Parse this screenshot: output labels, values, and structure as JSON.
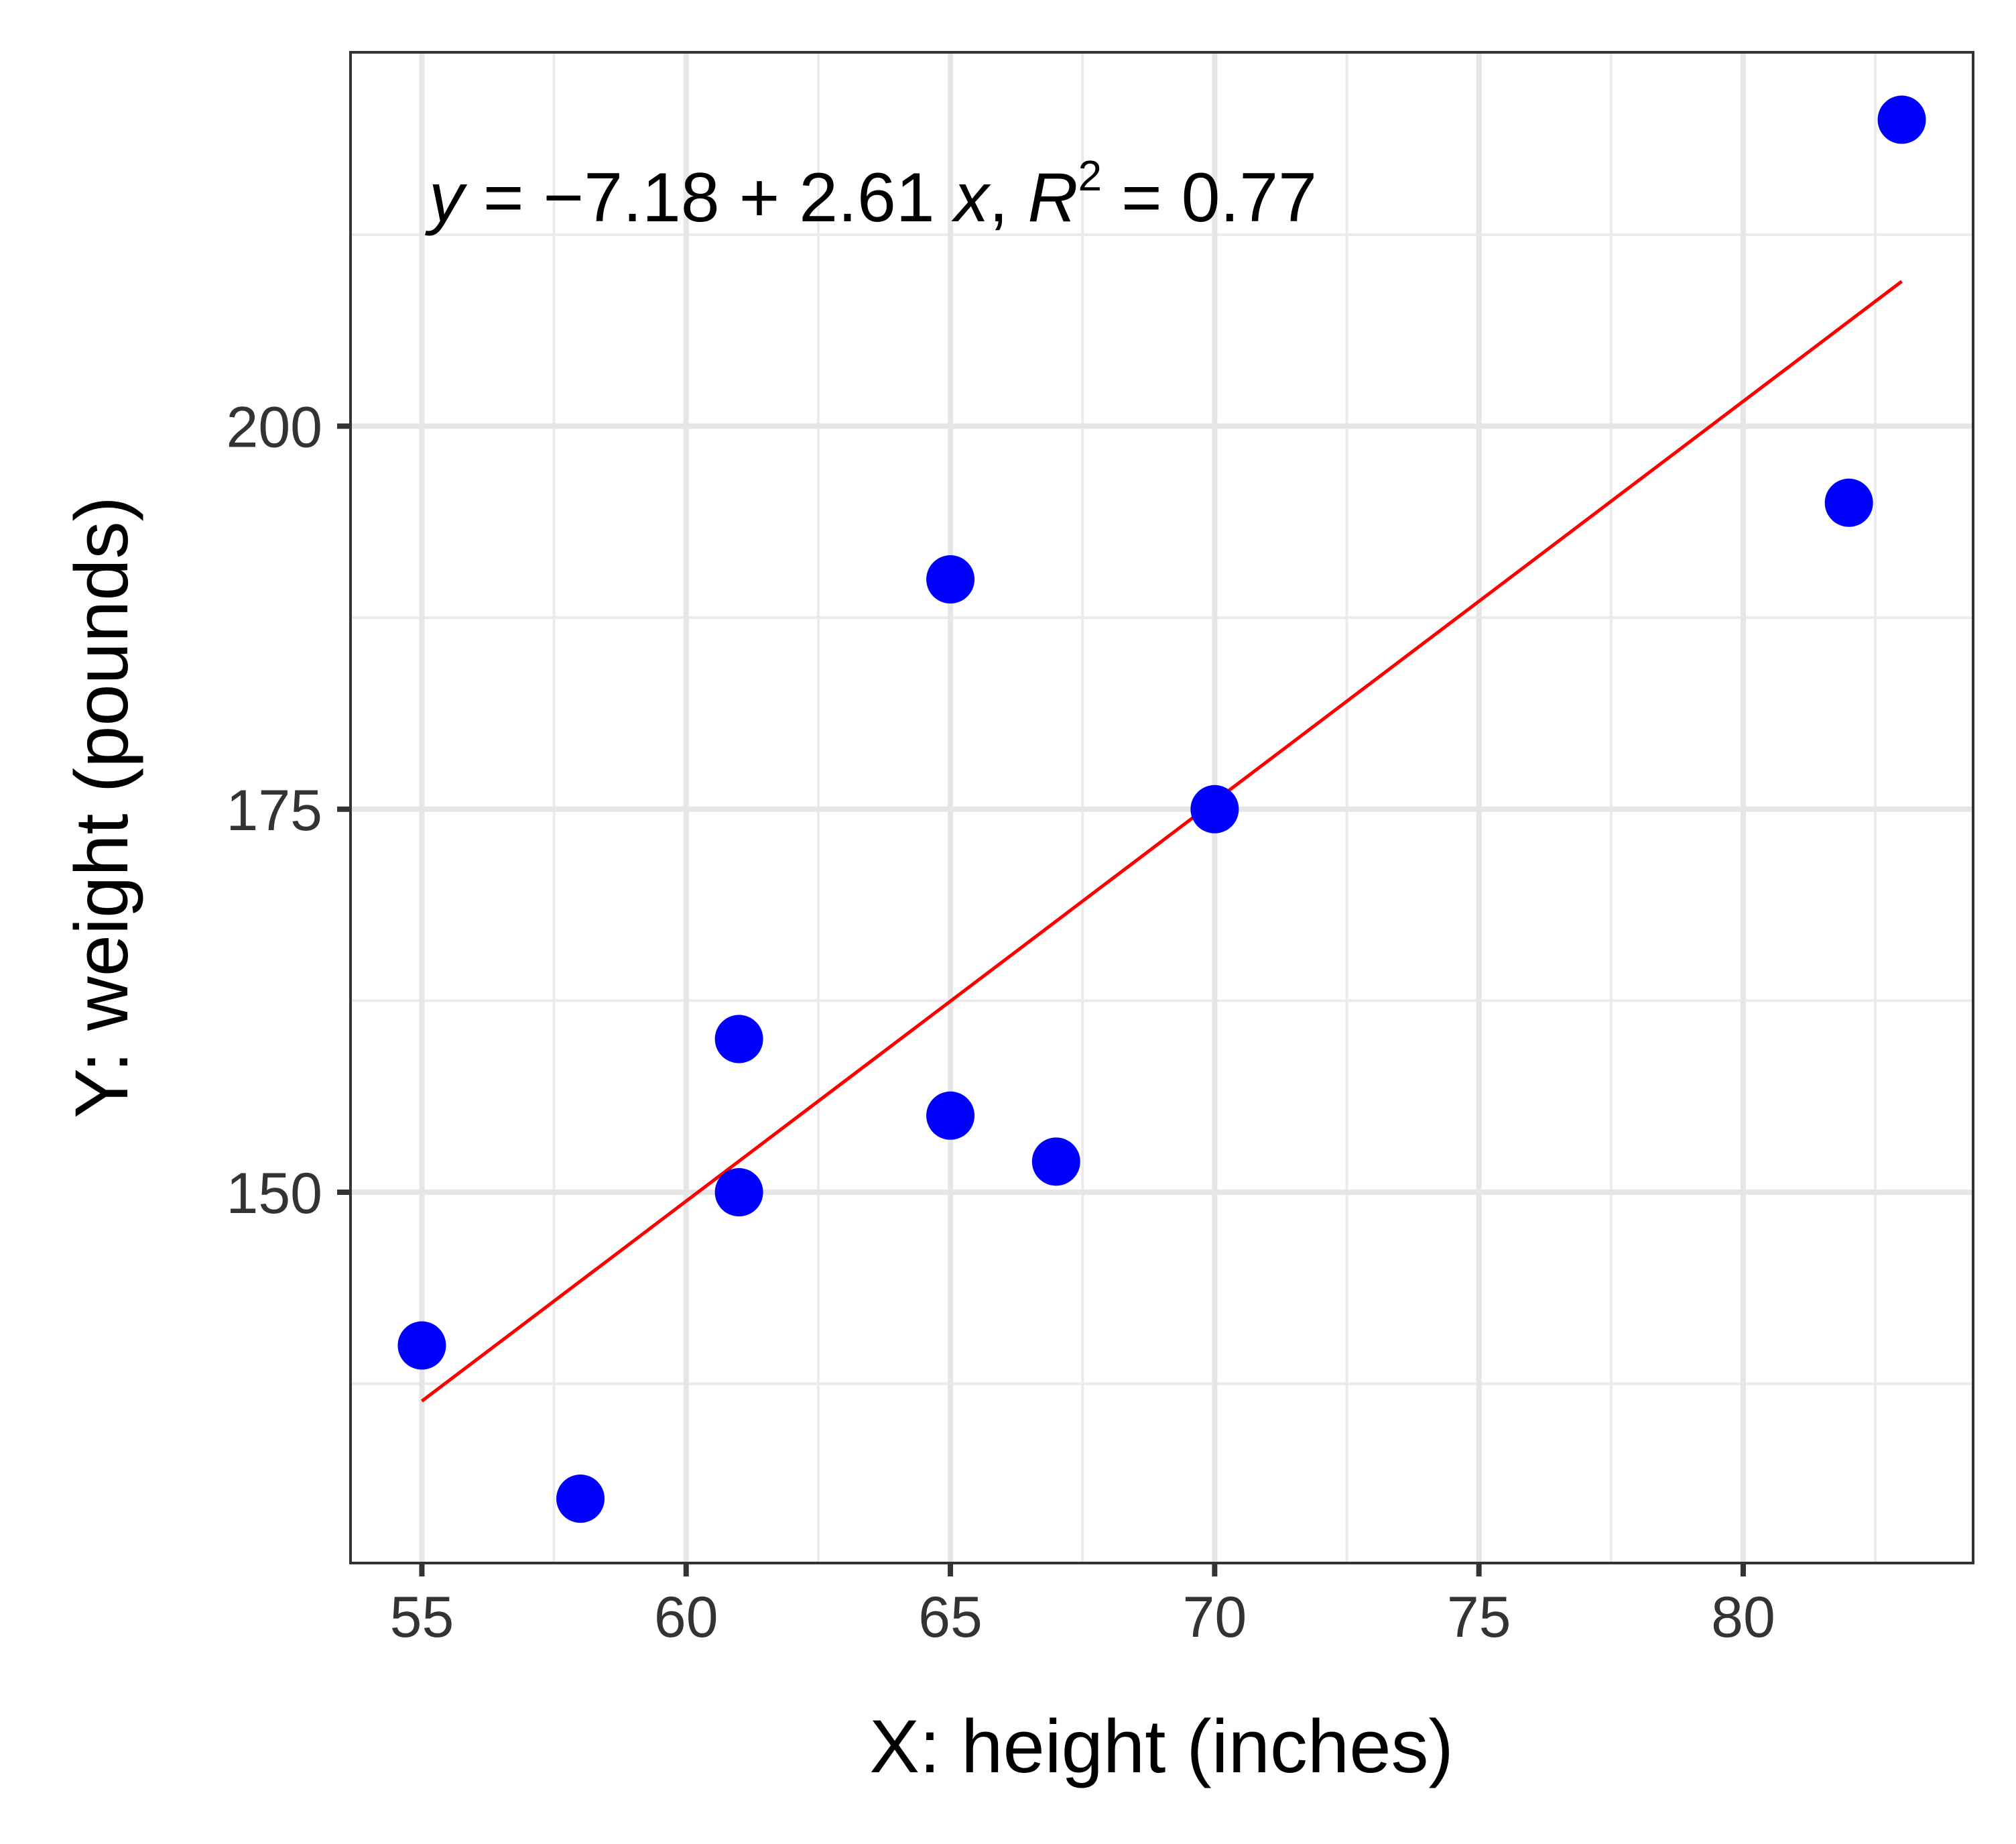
{
  "chart_data": {
    "type": "scatter",
    "title": "",
    "xlabel": "X: height (inches)",
    "ylabel": "Y: weight (pounds)",
    "xlim": [
      53.65,
      84.35
    ],
    "ylim": [
      125.8,
      224.4
    ],
    "x_ticks": [
      55,
      60,
      65,
      70,
      75,
      80
    ],
    "y_ticks": [
      150,
      175,
      200
    ],
    "x_tick_labels": [
      "55",
      "60",
      "65",
      "70",
      "75",
      "80"
    ],
    "y_tick_labels": [
      "150",
      "175",
      "200"
    ],
    "grid": true,
    "series": [
      {
        "x": [
          55,
          58,
          61,
          61,
          65,
          65,
          67,
          70,
          82,
          83
        ],
        "y": [
          140,
          130,
          150,
          160,
          155,
          190,
          152,
          175,
          195,
          220
        ],
        "color": "#0000ff"
      }
    ],
    "fit_line": {
      "intercept": -7.18,
      "slope": 2.61,
      "x_range": [
        55,
        83
      ],
      "color": "#ff0000"
    },
    "annotation": {
      "y_symbol": "y",
      "equals": " = ",
      "minus": "−",
      "intercept": "7.18",
      "plus": " + ",
      "slope": "2.61",
      "x_symbol": "x",
      "comma": ", ",
      "r_symbol": "R",
      "r_exponent": "2",
      "r_value": " = 0.77"
    }
  }
}
